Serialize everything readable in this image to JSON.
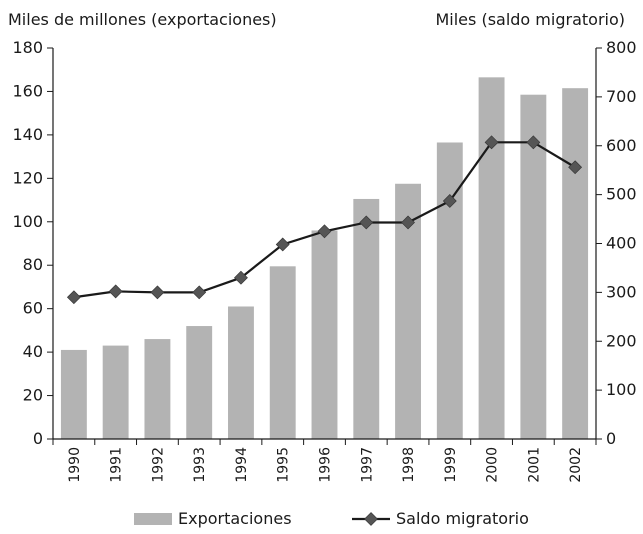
{
  "chart_data": {
    "type": "bar",
    "categories": [
      "1990",
      "1991",
      "1992",
      "1993",
      "1994",
      "1995",
      "1996",
      "1997",
      "1998",
      "1999",
      "2000",
      "2001",
      "2002"
    ],
    "series": [
      {
        "name": "Exportaciones",
        "type": "bar",
        "axis": "left",
        "values": [
          41,
          43,
          46,
          52,
          61,
          79.5,
          96,
          110.5,
          117.5,
          136.5,
          166.5,
          158.5,
          161.5
        ]
      },
      {
        "name": "Saldo migratorio",
        "type": "line",
        "axis": "right",
        "values": [
          290,
          302,
          300,
          300,
          330,
          398,
          425,
          443,
          443,
          487,
          607,
          607,
          556
        ]
      }
    ],
    "ylabel_left": "Miles de millones (exportaciones)",
    "ylabel_right": "Miles (saldo migratorio)",
    "ylim_left": [
      0,
      180
    ],
    "ylim_right": [
      0,
      800
    ],
    "yticks_left": [
      0,
      20,
      40,
      60,
      80,
      100,
      120,
      140,
      160,
      180
    ],
    "yticks_right": [
      0,
      100,
      200,
      300,
      400,
      500,
      600,
      700,
      800
    ],
    "grid": false,
    "legend_position": "bottom",
    "colors": {
      "bar": "#b3b3b3",
      "line": "#1a1a1a",
      "marker": "#555555"
    }
  }
}
